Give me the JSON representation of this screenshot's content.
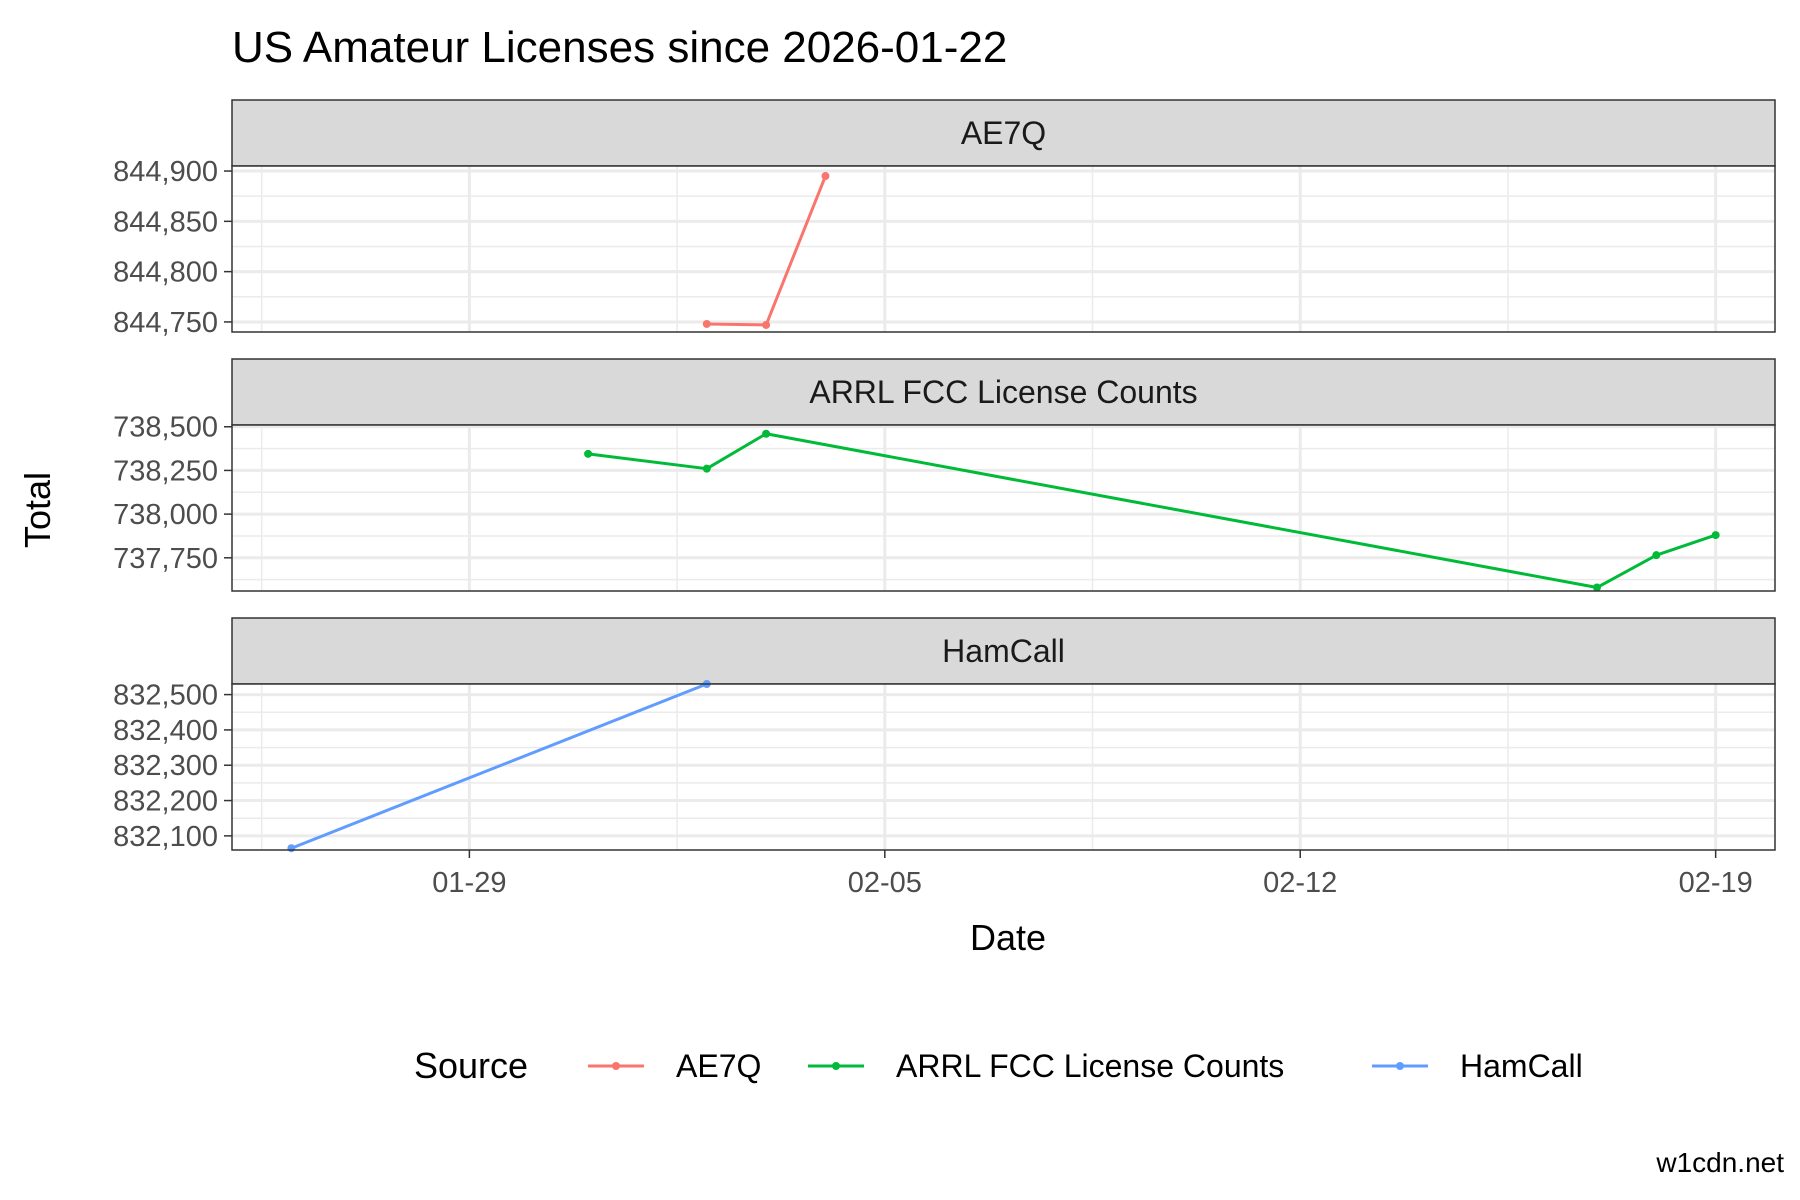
{
  "chart_data": {
    "type": "line",
    "title": "US Amateur Licenses since 2026-01-22",
    "xlabel": "Date",
    "ylabel": "Total",
    "caption": "w1cdn.net",
    "legend": {
      "title": "Source",
      "position": "bottom"
    },
    "grid": true,
    "x_axis": {
      "type": "date",
      "range": [
        "2026-01-25",
        "2026-02-20"
      ],
      "ticks": [
        {
          "date": "2026-01-29",
          "label": "01-29"
        },
        {
          "date": "2026-02-05",
          "label": "02-05"
        },
        {
          "date": "2026-02-12",
          "label": "02-12"
        },
        {
          "date": "2026-02-19",
          "label": "02-19"
        }
      ]
    },
    "panels": [
      {
        "name": "AE7Q",
        "color": "#F8766D",
        "ylim": [
          844740,
          844905
        ],
        "yticks": [
          {
            "value": 844750,
            "label": "844,750"
          },
          {
            "value": 844800,
            "label": "844,800"
          },
          {
            "value": 844850,
            "label": "844,850"
          },
          {
            "value": 844900,
            "label": "844,900"
          }
        ],
        "points": [
          {
            "x": "2026-02-02",
            "y": 844748
          },
          {
            "x": "2026-02-03",
            "y": 844747
          },
          {
            "x": "2026-02-04",
            "y": 844895
          }
        ]
      },
      {
        "name": "ARRL FCC License Counts",
        "color": "#00BA38",
        "ylim": [
          737560,
          738510
        ],
        "yticks": [
          {
            "value": 737750,
            "label": "737,750"
          },
          {
            "value": 738000,
            "label": "738,000"
          },
          {
            "value": 738250,
            "label": "738,250"
          },
          {
            "value": 738500,
            "label": "738,500"
          }
        ],
        "points": [
          {
            "x": "2026-01-31",
            "y": 738345
          },
          {
            "x": "2026-02-02",
            "y": 738260
          },
          {
            "x": "2026-02-03",
            "y": 738460
          },
          {
            "x": "2026-02-17",
            "y": 737580
          },
          {
            "x": "2026-02-18",
            "y": 737765
          },
          {
            "x": "2026-02-19",
            "y": 737880
          }
        ]
      },
      {
        "name": "HamCall",
        "color": "#619CFF",
        "ylim": [
          832060,
          832530
        ],
        "yticks": [
          {
            "value": 832100,
            "label": "832,100"
          },
          {
            "value": 832200,
            "label": "832,200"
          },
          {
            "value": 832300,
            "label": "832,300"
          },
          {
            "value": 832400,
            "label": "832,400"
          },
          {
            "value": 832500,
            "label": "832,500"
          }
        ],
        "points": [
          {
            "x": "2026-01-26",
            "y": 832065
          },
          {
            "x": "2026-02-02",
            "y": 832530
          }
        ]
      }
    ]
  }
}
